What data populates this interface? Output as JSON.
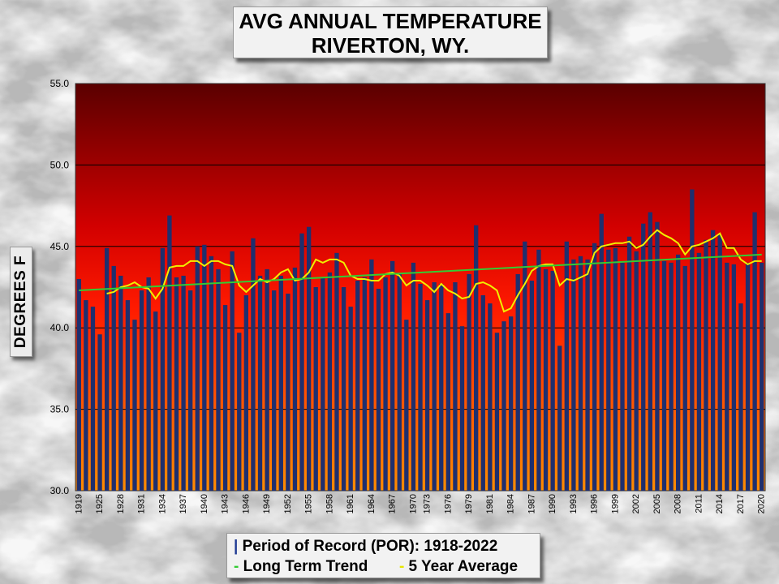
{
  "title_line1": "AVG ANNUAL TEMPERATURE",
  "title_line2": "RIVERTON, WY.",
  "ylabel": "DEGREES F",
  "legend": {
    "por_mark": "|",
    "por_text": "Period of Record (POR): 1918-2022",
    "trend_mark": "-",
    "trend_text": "Long Term Trend",
    "avg_mark": "-",
    "avg_text": "5 Year Average"
  },
  "colors": {
    "bar": "#1f2f6e",
    "trend": "#33cc33",
    "five_year": "#f0f000",
    "plot_top": "#5a0000",
    "plot_mid": "#ff1a00",
    "plot_bottom": "#ff8c00"
  },
  "chart_data": {
    "type": "bar",
    "title": "AVG ANNUAL TEMPERATURE RIVERTON, WY.",
    "ylabel": "DEGREES F",
    "ylim": [
      30,
      55
    ],
    "yticks": [
      "30.0",
      "35.0",
      "40.0",
      "45.0",
      "50.0",
      "55.0"
    ],
    "grid": true,
    "x_tick_labels": [
      "1919",
      "1925",
      "1928",
      "1931",
      "1934",
      "1937",
      "1940",
      "1943",
      "1946",
      "1949",
      "1952",
      "1955",
      "1958",
      "1961",
      "1964",
      "1967",
      "1970",
      "1973",
      "1976",
      "1979",
      "1981",
      "1984",
      "1987",
      "1990",
      "1993",
      "1996",
      "1999",
      "2002",
      "2005",
      "2008",
      "2011",
      "2014",
      "2017",
      "2020"
    ],
    "series": [
      {
        "name": "Period of Record (POR): 1918-2022",
        "values": [
          43.0,
          41.7,
          41.3,
          39.6,
          44.9,
          43.8,
          43.2,
          41.7,
          40.5,
          42.3,
          43.1,
          41.0,
          44.9,
          46.9,
          43.1,
          43.2,
          42.3,
          45.0,
          45.1,
          44.4,
          43.6,
          41.4,
          44.7,
          39.7,
          42.0,
          45.5,
          43.2,
          43.6,
          42.3,
          43.2,
          42.1,
          43.7,
          45.8,
          46.2,
          42.5,
          43.1,
          43.4,
          44.6,
          42.5,
          41.3,
          42.9,
          43.1,
          44.2,
          42.4,
          43.1,
          44.1,
          43.3,
          40.5,
          44.0,
          42.7,
          41.7,
          42.8,
          42.7,
          40.9,
          42.8,
          40.1,
          43.3,
          46.3,
          42.0,
          41.5,
          39.7,
          40.4,
          40.7,
          43.3,
          45.3,
          42.9,
          44.8,
          43.6,
          43.5,
          38.9,
          45.3,
          44.2,
          44.4,
          44.2,
          45.2,
          47.0,
          44.8,
          44.9,
          44.0,
          45.6,
          44.7,
          46.4,
          47.1,
          46.5,
          44.1,
          44.0,
          44.5,
          43.8,
          48.5,
          44.6,
          45.4,
          46.0,
          45.7,
          44.0,
          43.9,
          41.5,
          44.0,
          47.1,
          44.0
        ]
      },
      {
        "name": "5 Year Average",
        "values": [
          null,
          null,
          null,
          null,
          42.1,
          42.2,
          42.5,
          42.6,
          42.8,
          42.5,
          42.4,
          41.8,
          42.4,
          43.7,
          43.8,
          43.8,
          44.1,
          44.1,
          43.8,
          44.1,
          44.1,
          43.9,
          43.8,
          42.6,
          42.2,
          42.6,
          43.0,
          42.8,
          43.0,
          43.4,
          43.6,
          42.9,
          43.0,
          43.4,
          44.2,
          44.0,
          44.2,
          44.2,
          44.0,
          43.2,
          43.0,
          43.0,
          42.9,
          42.9,
          43.3,
          43.4,
          43.2,
          42.6,
          42.9,
          42.9,
          42.6,
          42.2,
          42.7,
          42.3,
          42.1,
          41.8,
          41.9,
          42.7,
          42.8,
          42.6,
          42.3,
          41.0,
          41.2,
          42.0,
          42.7,
          43.5,
          43.8,
          43.9,
          43.9,
          42.6,
          43.0,
          42.9,
          43.1,
          43.3,
          44.6,
          45.0,
          45.1,
          45.2,
          45.2,
          45.3,
          44.9,
          45.1,
          45.6,
          46.0,
          45.7,
          45.5,
          45.2,
          44.5,
          45.0,
          45.1,
          45.3,
          45.5,
          45.8,
          44.9,
          44.9,
          44.2,
          43.9,
          44.1,
          44.1
        ]
      },
      {
        "name": "Long Term Trend",
        "values": [
          42.3,
          44.5
        ]
      }
    ]
  }
}
